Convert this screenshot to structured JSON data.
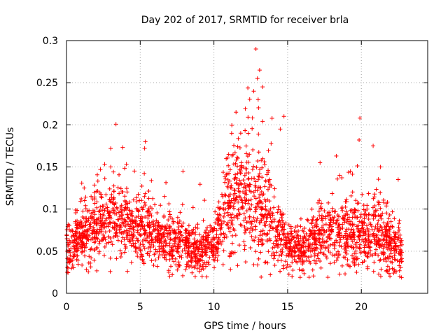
{
  "chart_data": {
    "type": "scatter",
    "title": "Day 202 of 2017, SRMTID for receiver brla",
    "xlabel": "GPS time / hours",
    "ylabel": "SRMTID / TECUs",
    "xlim": [
      0,
      24.5
    ],
    "ylim": [
      0,
      0.3
    ],
    "xticks": [
      0,
      5,
      10,
      15,
      20
    ],
    "xtick_labels": [
      "0",
      "5",
      "10",
      "15",
      "20"
    ],
    "yticks": [
      0,
      0.05,
      0.1,
      0.15,
      0.2,
      0.25,
      0.3
    ],
    "ytick_labels": [
      "0",
      "0.05",
      "0.1",
      "0.15",
      "0.2",
      "0.25",
      "0.3"
    ],
    "grid": true,
    "marker": "+",
    "series": [
      {
        "name": "SRMTID",
        "color": "#ff0000",
        "x_start": 0.0,
        "x_end": 22.75,
        "points_per_hour": 110,
        "baseline_profile": {
          "hours": [
            0,
            1,
            2,
            3,
            4,
            5,
            6,
            7,
            8,
            9,
            10,
            11,
            12,
            13,
            14,
            15,
            16,
            17,
            18,
            19,
            20,
            21,
            22,
            22.75
          ],
          "median": [
            0.055,
            0.065,
            0.08,
            0.09,
            0.085,
            0.075,
            0.07,
            0.06,
            0.06,
            0.05,
            0.055,
            0.1,
            0.115,
            0.11,
            0.09,
            0.055,
            0.05,
            0.065,
            0.07,
            0.07,
            0.065,
            0.07,
            0.06,
            0.05
          ],
          "spread": [
            0.02,
            0.025,
            0.03,
            0.035,
            0.03,
            0.03,
            0.025,
            0.025,
            0.02,
            0.02,
            0.02,
            0.045,
            0.05,
            0.055,
            0.04,
            0.02,
            0.02,
            0.025,
            0.025,
            0.03,
            0.03,
            0.035,
            0.025,
            0.02
          ]
        },
        "notable_points": [
          {
            "x": 12.85,
            "y": 0.29
          },
          {
            "x": 13.1,
            "y": 0.265
          },
          {
            "x": 12.95,
            "y": 0.255
          },
          {
            "x": 13.3,
            "y": 0.245
          },
          {
            "x": 12.7,
            "y": 0.24
          },
          {
            "x": 13.0,
            "y": 0.23
          },
          {
            "x": 11.5,
            "y": 0.215
          },
          {
            "x": 14.75,
            "y": 0.21
          },
          {
            "x": 19.9,
            "y": 0.208
          },
          {
            "x": 14.5,
            "y": 0.195
          },
          {
            "x": 11.2,
            "y": 0.19
          },
          {
            "x": 19.85,
            "y": 0.182
          },
          {
            "x": 5.35,
            "y": 0.18
          },
          {
            "x": 5.3,
            "y": 0.172
          },
          {
            "x": 20.8,
            "y": 0.175
          },
          {
            "x": 11.0,
            "y": 0.165
          },
          {
            "x": 18.3,
            "y": 0.163
          },
          {
            "x": 17.2,
            "y": 0.155
          },
          {
            "x": 3.0,
            "y": 0.15
          },
          {
            "x": 2.3,
            "y": 0.147
          },
          {
            "x": 7.9,
            "y": 0.145
          },
          {
            "x": 21.3,
            "y": 0.15
          },
          {
            "x": 22.5,
            "y": 0.135
          },
          {
            "x": 1.2,
            "y": 0.125
          },
          {
            "x": 0.1,
            "y": 0.03
          },
          {
            "x": 7.0,
            "y": 0.02
          },
          {
            "x": 9.2,
            "y": 0.02
          },
          {
            "x": 15.3,
            "y": 0.02
          },
          {
            "x": 22.6,
            "y": 0.02
          }
        ]
      }
    ]
  }
}
